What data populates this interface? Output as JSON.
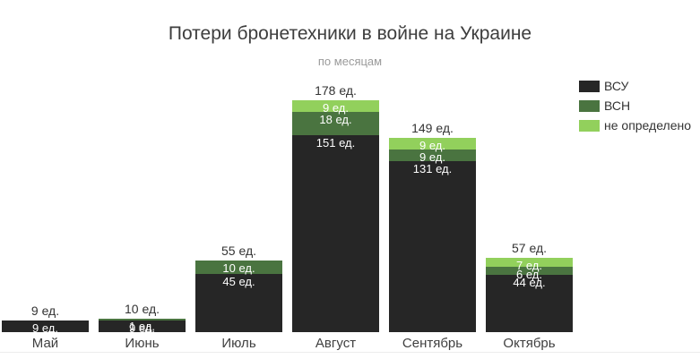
{
  "chart_data": {
    "type": "bar",
    "stacked": true,
    "title": "Потери бронетехники в войне на Украине",
    "subtitle": "по месяцам",
    "unit_suffix": " ед.",
    "categories": [
      "Май",
      "Июнь",
      "Июль",
      "Август",
      "Сентябрь",
      "Октябрь"
    ],
    "series": [
      {
        "name": "ВСУ",
        "color": "#262626",
        "values": [
          9,
          9,
          45,
          151,
          131,
          44
        ]
      },
      {
        "name": "ВСН",
        "color": "#4a7440",
        "values": [
          0,
          1,
          10,
          18,
          9,
          6
        ]
      },
      {
        "name": "не определено",
        "color": "#92d05c",
        "values": [
          0,
          0,
          0,
          9,
          9,
          7
        ]
      }
    ],
    "totals": [
      9,
      10,
      55,
      178,
      149,
      57
    ],
    "ylim": [
      0,
      178
    ],
    "grid": false,
    "legend_position": "right",
    "value_labels": "inside-white",
    "total_labels": "above",
    "stack_order": "first-series-at-bottom"
  },
  "colors": {
    "background": "#ffffff",
    "title": "#3d3d3d",
    "subtitle": "#9a9a9a",
    "axis_label": "#3f3f3f",
    "total_label": "#333333",
    "segment_label": "#ffffff"
  }
}
